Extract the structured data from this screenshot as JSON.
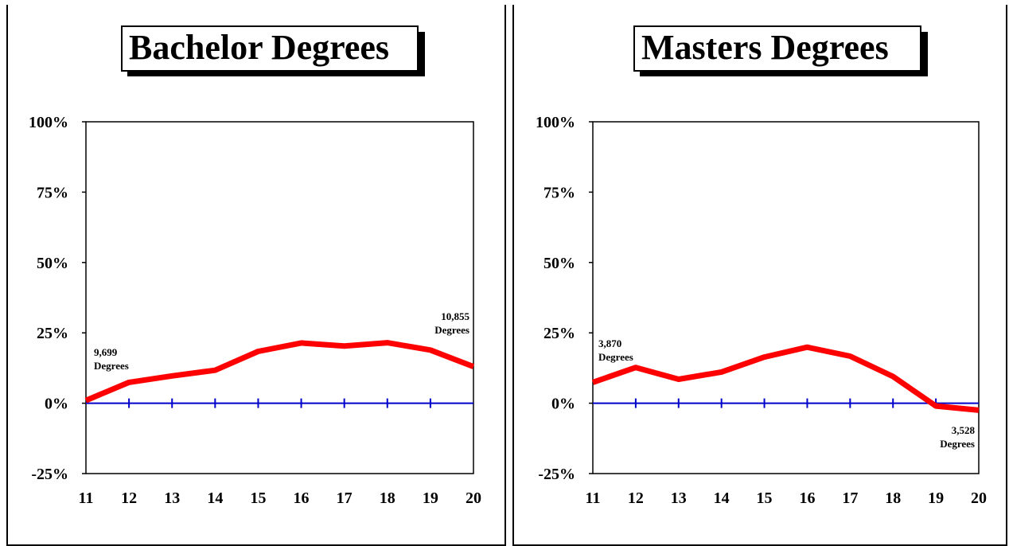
{
  "chart_data": [
    {
      "type": "line",
      "title": "Bachelor Degrees",
      "x": [
        11,
        12,
        13,
        14,
        15,
        16,
        17,
        18,
        19,
        20
      ],
      "series": [
        {
          "values": [
            0.01,
            0.074,
            0.097,
            0.117,
            0.184,
            0.214,
            0.203,
            0.215,
            0.189,
            0.13
          ]
        }
      ],
      "ylim": [
        -0.25,
        1.0
      ],
      "yticks": [
        "100%",
        "75%",
        "50%",
        "25%",
        "0%",
        "-25%"
      ],
      "xticks": [
        "11",
        "12",
        "13",
        "14",
        "15",
        "16",
        "17",
        "18",
        "19",
        "20"
      ],
      "annotations": [
        {
          "line1": "9,699",
          "line2": "Degrees"
        },
        {
          "line1": "10,855",
          "line2": "Degrees"
        }
      ],
      "colors": {
        "series": "#ff0000",
        "zero_line": "#0000cc"
      },
      "grid": false
    },
    {
      "type": "line",
      "title": "Masters Degrees",
      "x": [
        11,
        12,
        13,
        14,
        15,
        16,
        17,
        18,
        19,
        20
      ],
      "series": [
        {
          "values": [
            0.074,
            0.127,
            0.085,
            0.111,
            0.164,
            0.199,
            0.167,
            0.095,
            -0.01,
            -0.025
          ]
        }
      ],
      "ylim": [
        -0.25,
        1.0
      ],
      "yticks": [
        "100%",
        "75%",
        "50%",
        "25%",
        "0%",
        "-25%"
      ],
      "xticks": [
        "11",
        "12",
        "13",
        "14",
        "15",
        "16",
        "17",
        "18",
        "19",
        "20"
      ],
      "annotations": [
        {
          "line1": "3,870",
          "line2": "Degrees"
        },
        {
          "line1": "3,528",
          "line2": "Degrees"
        }
      ],
      "colors": {
        "series": "#ff0000",
        "zero_line": "#0000cc"
      },
      "grid": false
    }
  ]
}
